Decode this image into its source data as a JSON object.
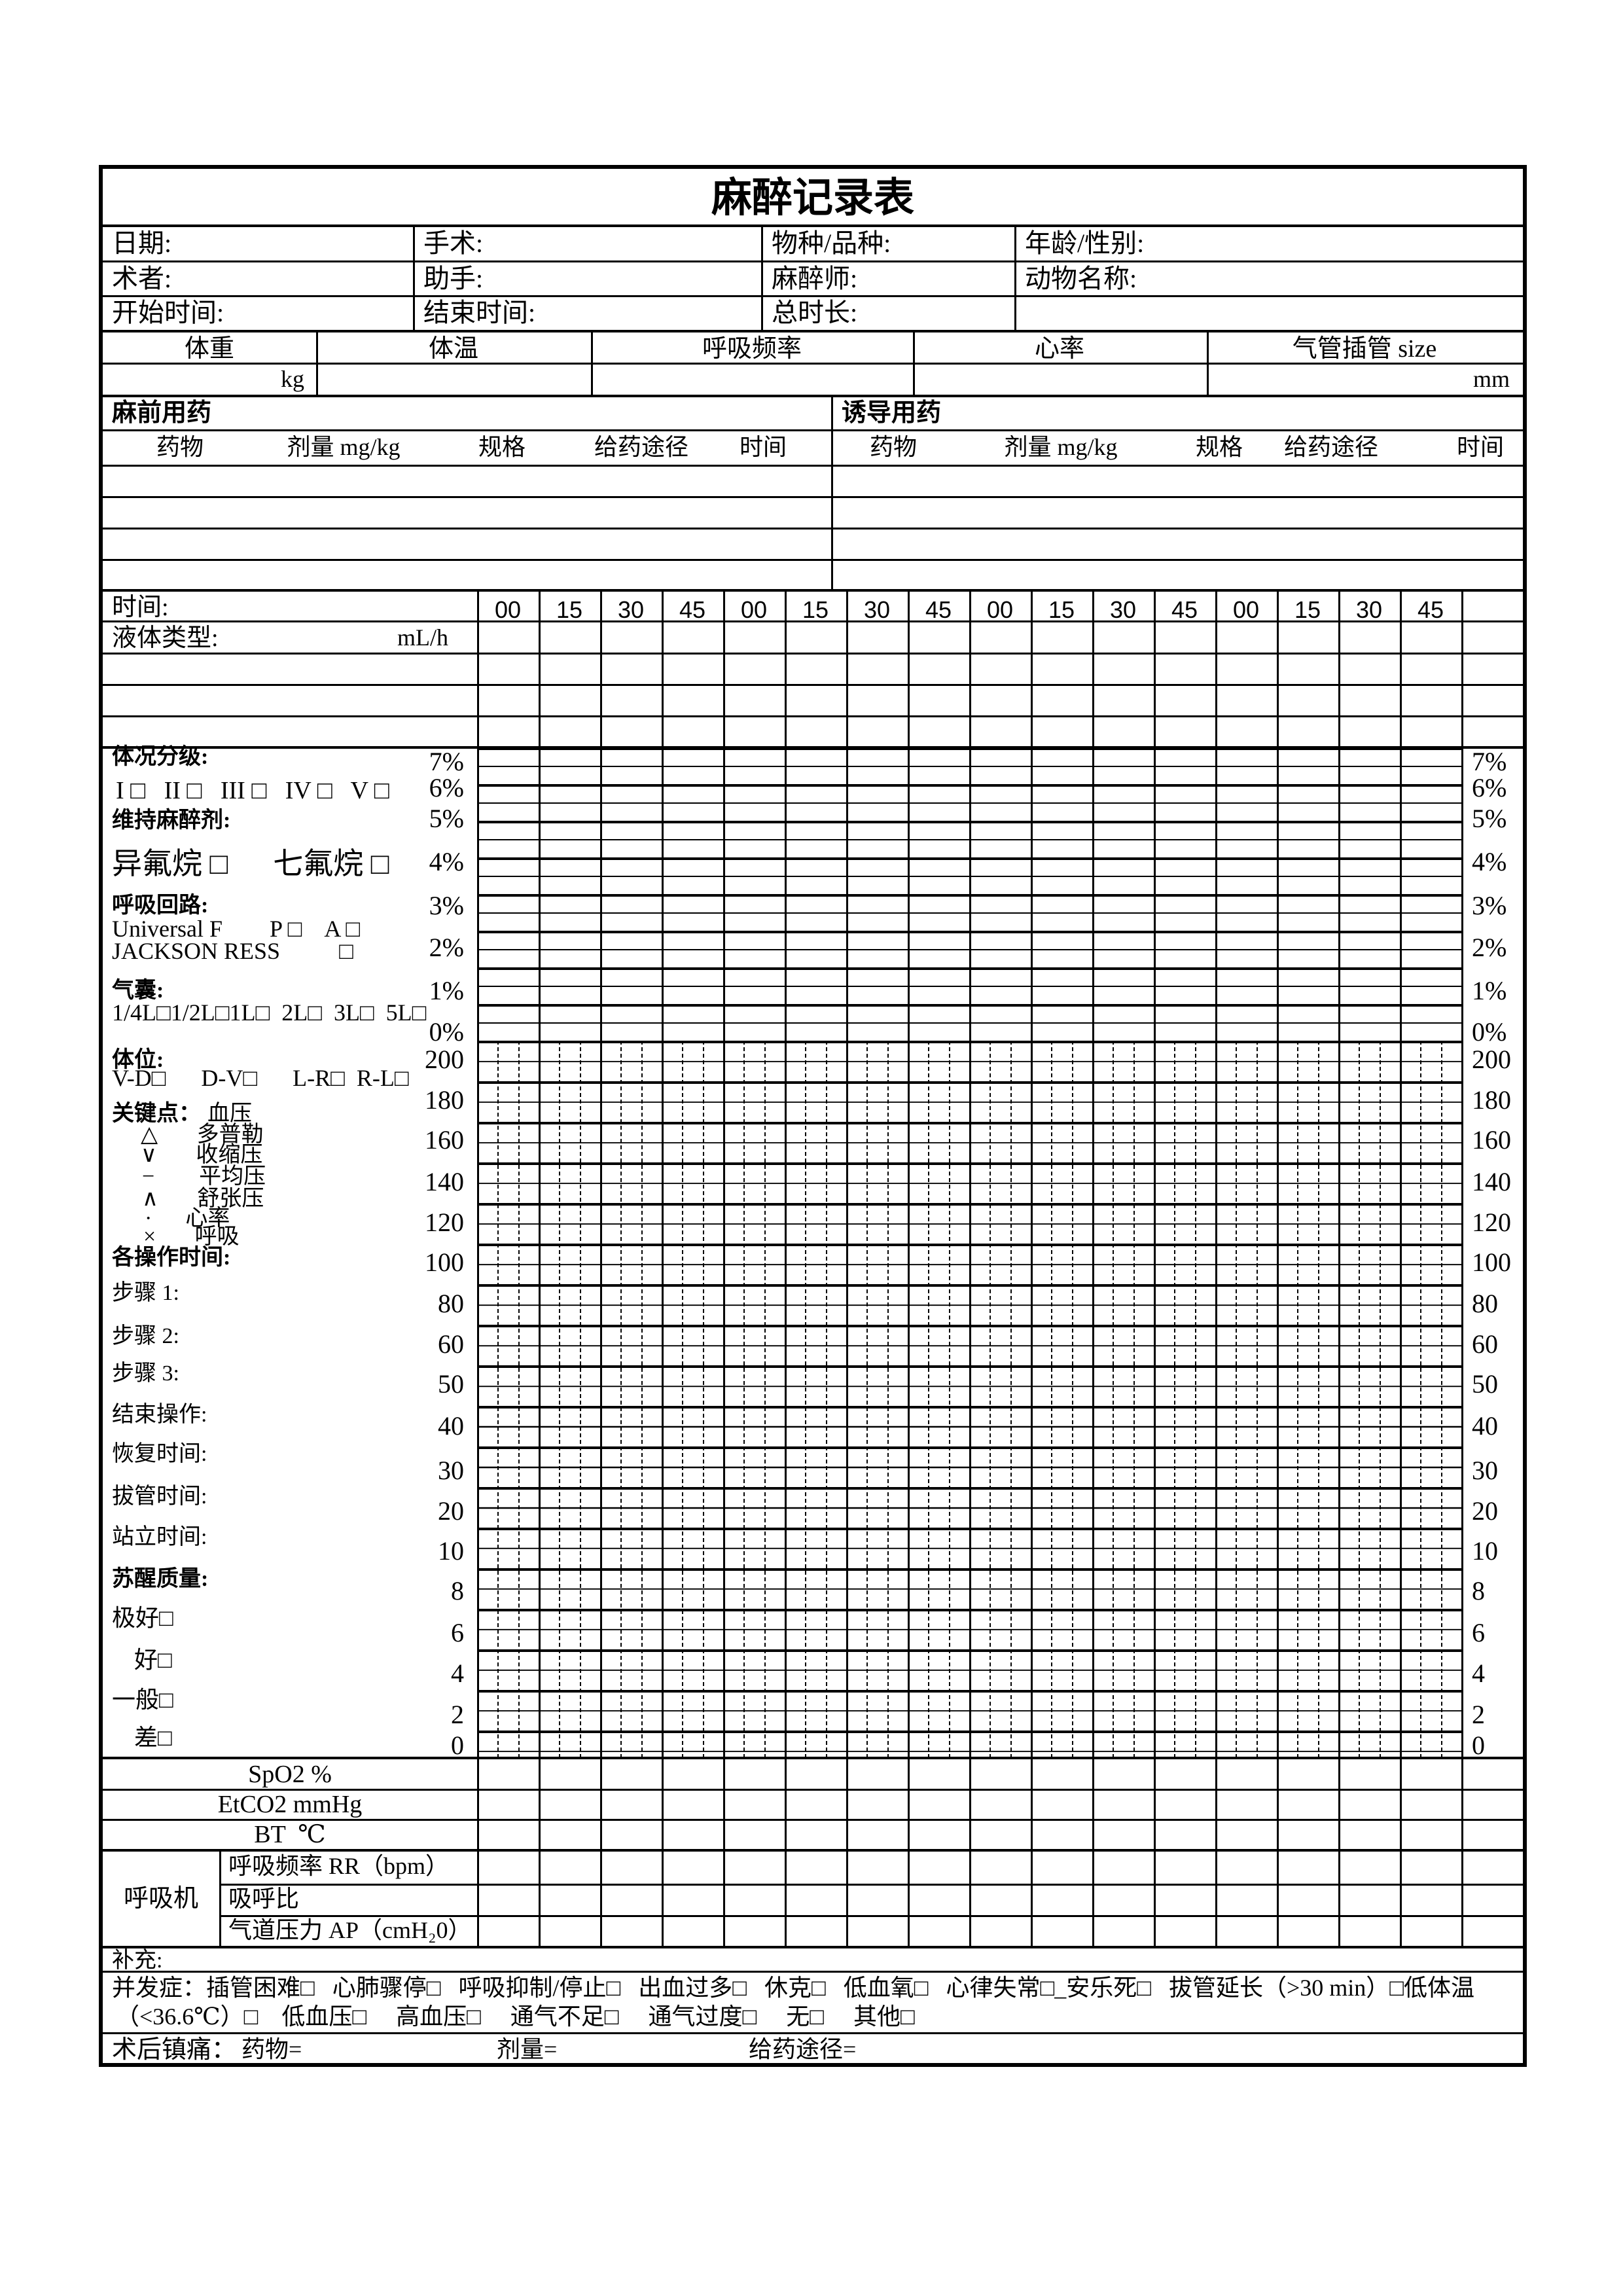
{
  "title": "麻醉记录表",
  "info": {
    "date": "日期:",
    "surgery": "手术:",
    "species": "物种/品种:",
    "age_sex": "年龄/性别:",
    "surgeon": "术者:",
    "assistant": "助手:",
    "anesthetist": "麻醉师:",
    "animal_name": "动物名称:",
    "start_time": "开始时间:",
    "end_time": "结束时间:",
    "total_duration": "总时长:"
  },
  "vitals": {
    "weight": "体重",
    "weight_unit": "kg",
    "temperature": "体温",
    "respiratory_rate": "呼吸频率",
    "heart_rate": "心率",
    "ett_size": "气管插管 size",
    "ett_unit": "mm"
  },
  "medication": {
    "pre_title": "麻前用药",
    "induction_title": "诱导用药",
    "columns": [
      "药物",
      "剂量 mg/kg",
      "规格",
      "给药途径",
      "时间"
    ]
  },
  "timeline": {
    "time_label": "时间:",
    "ticks": [
      "00",
      "15",
      "30",
      "45",
      "00",
      "15",
      "30",
      "45",
      "00",
      "15",
      "30",
      "45",
      "00",
      "15",
      "30",
      "45"
    ],
    "fluid_label": "液体类型:",
    "fluid_unit": "mL/h"
  },
  "sidebar": {
    "condition_label": "体况分级:",
    "condition_options": "I □   II □   III □   IV □   V □",
    "maintenance_label": "维持麻醉剂:",
    "maintenance_options": "异氟烷 □      七氟烷 □",
    "circuit_label": "呼吸回路:",
    "circuit_line1": "Universal F        P □    A □",
    "circuit_line2": "JACKSON RESS          □",
    "bag_label": "气囊:",
    "bag_options": "1/4L□1/2L□1L□  2L□  3L□  5L□",
    "position_label": "体位:",
    "position_options": "V-D□      D-V□      L-R□  R-L□",
    "keypoints_label": "关键点：",
    "keypoints_value": "血压",
    "kp_doppler": "△       多普勒",
    "kp_systolic": "∨       收缩压",
    "kp_mean": "−        平均压",
    "kp_diastolic": "∧       舒张压",
    "kp_hr": "·      心率",
    "kp_resp": "×       呼吸",
    "optime_label": "各操作时间:",
    "step1": "步骤 1:",
    "step2": "步骤 2:",
    "step3": "步骤 3:",
    "end_op": "结束操作:",
    "recovery_time": "恢复时间:",
    "extubation_time": "拔管时间:",
    "standing_time": "站立时间:",
    "quality_label": "苏醒质量:",
    "quality_excellent": "极好□",
    "quality_good": "好□",
    "quality_fair": "一般□",
    "quality_poor": "差□"
  },
  "chart": {
    "percent_labels": [
      "7%",
      "6%",
      "5%",
      "4%",
      "3%",
      "2%",
      "1%",
      "0%"
    ],
    "value_labels": [
      "200",
      "180",
      "160",
      "140",
      "120",
      "100",
      "80",
      "60",
      "50",
      "40",
      "30",
      "20",
      "10",
      "8",
      "6",
      "4",
      "2",
      "0"
    ]
  },
  "monitor": {
    "spo2": "SpO2 %",
    "etco2": "EtCO2 mmHg",
    "bt": "BT  ℃"
  },
  "ventilator": {
    "label": "呼吸机",
    "rr": "呼吸频率 RR（bpm）",
    "ie_ratio": "吸呼比",
    "airway_pressure": "气道压力 AP（cmH₂0）"
  },
  "footer": {
    "supplement": "补充:",
    "complications_line1": "并发症：插管困难□   心肺骤停□   呼吸抑制/停止□   出血过多□   休克□   低血氧□   心律失常□_安乐死□   拔管延长（>30 min）□低体温",
    "complications_line2": "（<36.6℃）□    低血压□     高血压□     通气不足□     通气过度□     无□     其他□",
    "analgesia_label": "术后镇痛：",
    "analgesia_drug": "药物=",
    "analgesia_dose": "剂量=",
    "analgesia_route": "给药途径="
  }
}
